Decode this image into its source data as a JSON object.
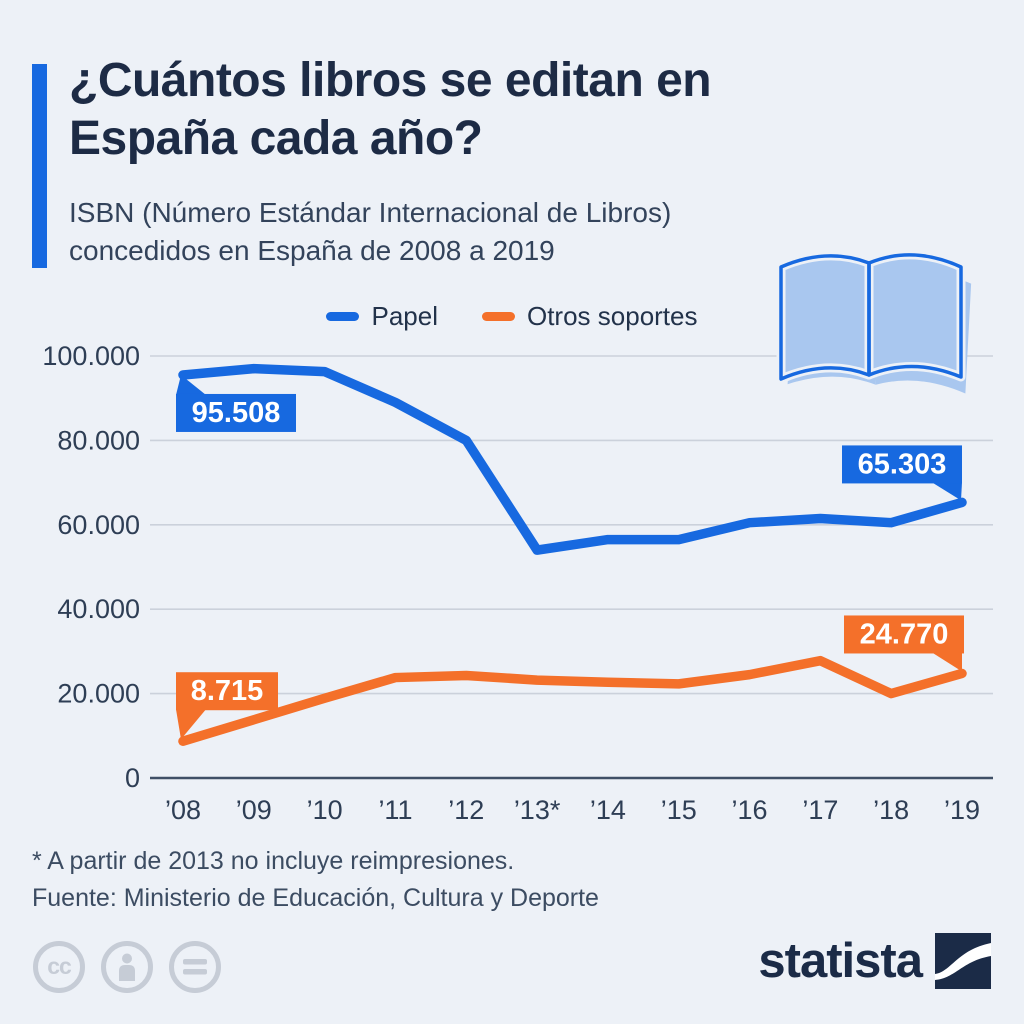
{
  "header": {
    "title_lines": [
      "¿Cuántos libros se editan en",
      "España cada año?"
    ],
    "subtitle_lines": [
      "ISBN (Número Estándar Internacional de Libros)",
      "concedidos en España de 2008 a 2019"
    ]
  },
  "theme": {
    "background": "#edf1f7",
    "accent": "#1769e0",
    "papel_color": "#1769e0",
    "otros_color": "#f4702a",
    "title_color": "#1d2b45",
    "axis_text_color": "#2e3e55",
    "gridline_color": "#cbd1db",
    "axis_line_color": "#3f4f66",
    "book_icon_fill": "#a9c7ef"
  },
  "legend": {
    "items": [
      {
        "label": "Papel"
      },
      {
        "label": "Otros soportes"
      }
    ]
  },
  "chart_data": {
    "type": "line",
    "categories": [
      "’08",
      "’09",
      "’10",
      "’11",
      "’12",
      "’13*",
      "’14",
      "’15",
      "’16",
      "’17",
      "’18",
      "’19"
    ],
    "series": [
      {
        "name": "Papel",
        "color": "#1769e0",
        "values": [
          95508,
          97000,
          96300,
          89000,
          80000,
          54000,
          56500,
          56500,
          60500,
          61500,
          60500,
          65303
        ]
      },
      {
        "name": "Otros soportes",
        "color": "#f4702a",
        "values": [
          8715,
          13800,
          18900,
          23800,
          24300,
          23200,
          22700,
          22300,
          24500,
          27800,
          20000,
          24770
        ]
      }
    ],
    "ylim": [
      0,
      100000
    ],
    "yticks": [
      0,
      20000,
      40000,
      60000,
      80000,
      100000
    ],
    "ytick_labels": [
      "0",
      "20.000",
      "40.000",
      "60.000",
      "80.000",
      "100.000"
    ],
    "grid": "horizontal",
    "legend_position": "top-center",
    "annotations": [
      {
        "series": 0,
        "index": 0,
        "label": "95.508"
      },
      {
        "series": 0,
        "index": 11,
        "label": "65.303"
      },
      {
        "series": 1,
        "index": 0,
        "label": "8.715"
      },
      {
        "series": 1,
        "index": 11,
        "label": "24.770"
      }
    ]
  },
  "footnote": "* A partir de 2013 no incluye reimpresiones.",
  "source": "Fuente: Ministerio de Educación, Cultura y Deporte",
  "branding": {
    "logo_text": "statista",
    "cc_label": "cc",
    "equals_label": "="
  }
}
